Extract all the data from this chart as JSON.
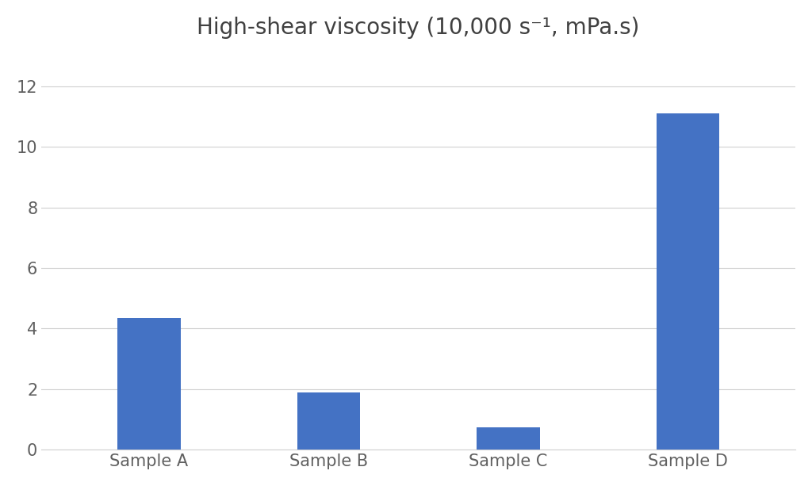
{
  "categories": [
    "Sample A",
    "Sample B",
    "Sample C",
    "Sample D"
  ],
  "values": [
    4.35,
    1.9,
    0.75,
    11.1
  ],
  "bar_color": "#4472C4",
  "title": "High-shear viscosity (10,000 s⁻¹, mPa.s)",
  "ylim": [
    0,
    13
  ],
  "yticks": [
    0,
    2,
    4,
    6,
    8,
    10,
    12
  ],
  "title_fontsize": 20,
  "tick_fontsize": 15,
  "background_color": "#ffffff",
  "bar_width": 0.35,
  "grid_color": "#d0d0d0",
  "grid_linewidth": 0.8,
  "title_color": "#404040",
  "tick_color": "#606060"
}
